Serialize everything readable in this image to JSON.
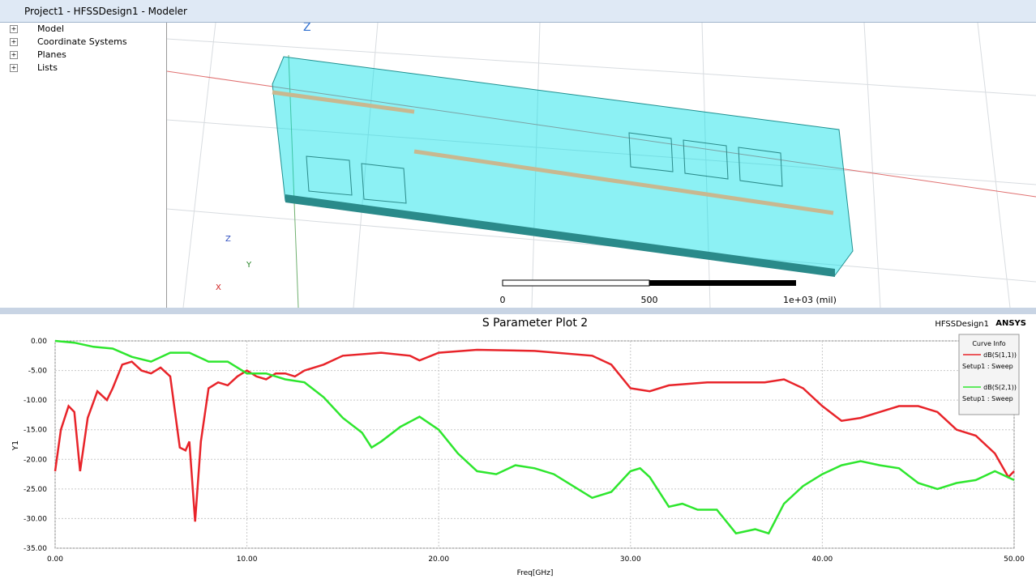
{
  "window": {
    "title": "Project1 - HFSSDesign1 - Modeler"
  },
  "tree": [
    "Model",
    "Coordinate Systems",
    "Planes",
    "Lists"
  ],
  "modeler": {
    "axis_z": "Z",
    "triad": [
      "Z",
      "Y",
      "X"
    ],
    "scale_labels": [
      "0",
      "500",
      "1e+03 (mil)"
    ]
  },
  "chart_data": {
    "type": "line",
    "title": "S Parameter Plot 2",
    "design": "HFSSDesign1",
    "brand": "ANSYS",
    "legend_title": "Curve Info",
    "x_label": "Freq[GHz]",
    "y_label": "Y1",
    "xlim": [
      0,
      50
    ],
    "ylim": [
      -35,
      0
    ],
    "xticks": [
      {
        "value": 0,
        "label": "0.00"
      },
      {
        "value": 10,
        "label": "10.00"
      },
      {
        "value": 20,
        "label": "20.00"
      },
      {
        "value": 30,
        "label": "30.00"
      },
      {
        "value": 40,
        "label": "40.00"
      },
      {
        "value": 50,
        "label": "50.00"
      }
    ],
    "yticks": [
      {
        "value": 0,
        "label": "0.00"
      },
      {
        "value": -5,
        "label": "-5.00"
      },
      {
        "value": -10,
        "label": "-10.00"
      },
      {
        "value": -15,
        "label": "-15.00"
      },
      {
        "value": -20,
        "label": "-20.00"
      },
      {
        "value": -25,
        "label": "-25.00"
      },
      {
        "value": -30,
        "label": "-30.00"
      },
      {
        "value": -35,
        "label": "-35.00"
      }
    ],
    "grid": true,
    "series": [
      {
        "name": "dB(S(1,1))",
        "setup": "Setup1 : Sweep",
        "color": "#e8242a",
        "x": [
          0,
          0.3,
          0.7,
          1.0,
          1.3,
          1.7,
          2.2,
          2.7,
          3.0,
          3.5,
          4.0,
          4.5,
          5.0,
          5.5,
          6.0,
          6.5,
          6.8,
          7.0,
          7.3,
          7.6,
          8.0,
          8.5,
          9.0,
          9.5,
          10,
          10.5,
          11,
          11.5,
          12,
          12.5,
          13,
          14,
          15,
          17,
          18.5,
          19,
          20,
          22,
          25,
          28,
          29,
          30,
          31,
          32,
          34,
          36,
          37,
          38,
          39,
          40,
          41,
          42,
          43,
          44,
          45,
          46,
          47,
          48,
          49,
          49.7,
          50
        ],
        "values": [
          -22,
          -15,
          -11,
          -12,
          -22,
          -13,
          -8.5,
          -10,
          -8,
          -4,
          -3.5,
          -5,
          -5.5,
          -4.5,
          -6,
          -18,
          -18.5,
          -17,
          -30.5,
          -17,
          -8,
          -7,
          -7.5,
          -6,
          -5,
          -6,
          -6.5,
          -5.5,
          -5.5,
          -6,
          -5,
          -4,
          -2.5,
          -2,
          -2.5,
          -3.3,
          -2,
          -1.5,
          -1.7,
          -2.5,
          -4,
          -8,
          -8.5,
          -7.5,
          -7,
          -7,
          -7,
          -6.5,
          -8,
          -11,
          -13.5,
          -13,
          -12,
          -11,
          -11,
          -12,
          -15,
          -16,
          -19,
          -23,
          -22
        ]
      },
      {
        "name": "dB(S(2,1))",
        "setup": "Setup1 : Sweep",
        "color": "#2ee62e",
        "x": [
          0,
          1,
          2,
          3,
          4,
          5,
          6,
          7,
          8,
          9,
          10,
          11,
          12,
          13,
          14,
          15,
          16,
          16.5,
          17,
          18,
          19,
          20,
          21,
          22,
          23,
          24,
          25,
          26,
          27,
          28,
          29,
          30,
          30.5,
          31,
          32,
          32.7,
          33.5,
          34.5,
          35.5,
          36.5,
          37.2,
          38,
          39,
          40,
          41,
          42,
          43,
          44,
          45,
          46,
          47,
          48,
          49,
          50
        ],
        "values": [
          0,
          -0.3,
          -1,
          -1.3,
          -2.7,
          -3.5,
          -2,
          -2,
          -3.5,
          -3.5,
          -5.5,
          -5.5,
          -6.5,
          -7,
          -9.5,
          -13,
          -15.5,
          -18,
          -17,
          -14.5,
          -12.8,
          -15,
          -19,
          -22,
          -22.5,
          -21,
          -21.5,
          -22.5,
          -24.5,
          -26.5,
          -25.5,
          -22,
          -21.5,
          -23,
          -28,
          -27.5,
          -28.5,
          -28.5,
          -32.5,
          -31.8,
          -32.5,
          -27.5,
          -24.5,
          -22.5,
          -21,
          -20.3,
          -21,
          -21.5,
          -24,
          -25,
          -24,
          -23.5,
          -22,
          -23.5
        ]
      }
    ]
  }
}
